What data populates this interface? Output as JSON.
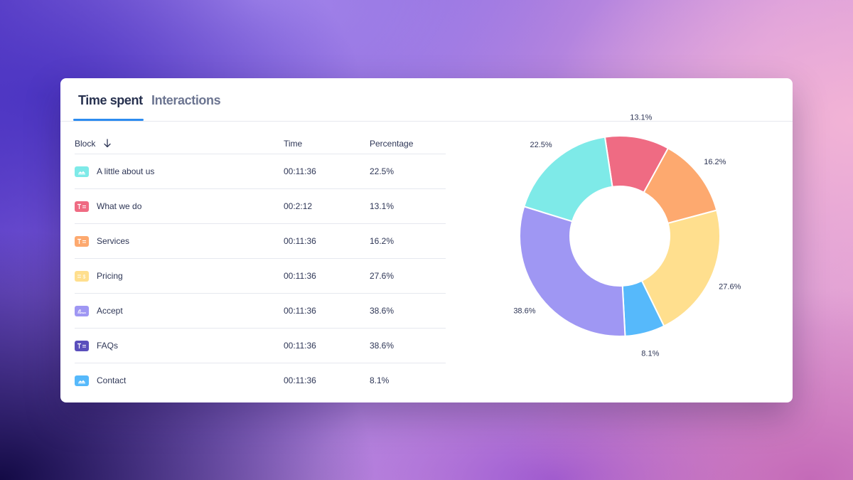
{
  "tabs": [
    {
      "label": "Time spent",
      "active": true
    },
    {
      "label": "Interactions",
      "active": false
    }
  ],
  "table": {
    "headers": {
      "block": "Block",
      "time": "Time",
      "percentage": "Percentage"
    },
    "sort_icon": "arrow-down-icon",
    "rows": [
      {
        "name": "A little about us",
        "time": "00:11:36",
        "percentage": "22.5%",
        "icon": "image-block-icon",
        "color": "#7eeae8"
      },
      {
        "name": "What we do",
        "time": "00:2:12",
        "percentage": "13.1%",
        "icon": "text-block-icon",
        "color": "#ef6b83"
      },
      {
        "name": "Services",
        "time": "00:11:36",
        "percentage": "16.2%",
        "icon": "text-block-icon",
        "color": "#fda96f"
      },
      {
        "name": "Pricing",
        "time": "00:11:36",
        "percentage": "27.6%",
        "icon": "pricing-block-icon",
        "color": "#ffdf8e"
      },
      {
        "name": "Accept",
        "time": "00:11:36",
        "percentage": "38.6%",
        "icon": "signature-block-icon",
        "color": "#9f97f3"
      },
      {
        "name": "FAQs",
        "time": "00:11:36",
        "percentage": "38.6%",
        "icon": "text-block-icon",
        "color": "#5a4fbc"
      },
      {
        "name": "Contact",
        "time": "00:11:36",
        "percentage": "8.1%",
        "icon": "image-block-icon",
        "color": "#56b9fb"
      }
    ]
  },
  "chart_data": {
    "type": "pie",
    "donut": true,
    "slices": [
      {
        "label": "13.1%",
        "value": 13.1,
        "color": "#ef6b83"
      },
      {
        "label": "16.2%",
        "value": 16.2,
        "color": "#fda96f"
      },
      {
        "label": "27.6%",
        "value": 27.6,
        "color": "#ffdf8e"
      },
      {
        "label": "8.1%",
        "value": 8.1,
        "color": "#56b9fb"
      },
      {
        "label": "38.6%",
        "value": 38.6,
        "color": "#9f97f3"
      },
      {
        "label": "22.5%",
        "value": 22.5,
        "color": "#7eeae8"
      }
    ]
  }
}
